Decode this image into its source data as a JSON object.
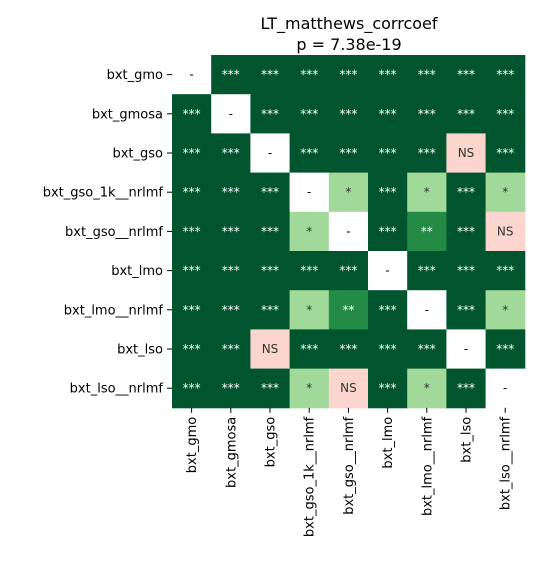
{
  "chart_data": {
    "type": "heatmap",
    "title": "LT_matthews_corrcoef",
    "subtitle": "p = 7.38e-19",
    "labels": [
      "bxt_gmo",
      "bxt_gmosa",
      "bxt_gso",
      "bxt_gso_1k__nrlmf",
      "bxt_gso__nrlmf",
      "bxt_lmo",
      "bxt_lmo__nrlmf",
      "bxt_lso",
      "bxt_lso__nrlmf"
    ],
    "matrix": [
      [
        "-",
        "***",
        "***",
        "***",
        "***",
        "***",
        "***",
        "***",
        "***"
      ],
      [
        "***",
        "-",
        "***",
        "***",
        "***",
        "***",
        "***",
        "***",
        "***"
      ],
      [
        "***",
        "***",
        "-",
        "***",
        "***",
        "***",
        "***",
        "NS",
        "***"
      ],
      [
        "***",
        "***",
        "***",
        "-",
        "*",
        "***",
        "*",
        "***",
        "*"
      ],
      [
        "***",
        "***",
        "***",
        "*",
        "-",
        "***",
        "**",
        "***",
        "NS"
      ],
      [
        "***",
        "***",
        "***",
        "***",
        "***",
        "-",
        "***",
        "***",
        "***"
      ],
      [
        "***",
        "***",
        "***",
        "*",
        "**",
        "***",
        "-",
        "***",
        "*"
      ],
      [
        "***",
        "***",
        "NS",
        "***",
        "***",
        "***",
        "***",
        "-",
        "***"
      ],
      [
        "***",
        "***",
        "***",
        "*",
        "NS",
        "***",
        "*",
        "***",
        "-"
      ]
    ],
    "colors": {
      "***": "#00552f",
      "**": "#238b45",
      "*": "#a1d99b",
      "NS": "#fcd5ce",
      "-": "#ffffff"
    },
    "text_colors": {
      "***": "#ffffff",
      "**": "#ffffff",
      "*": "#333333",
      "NS": "#333333",
      "-": "#000000"
    },
    "grid": false,
    "legend": "none"
  }
}
